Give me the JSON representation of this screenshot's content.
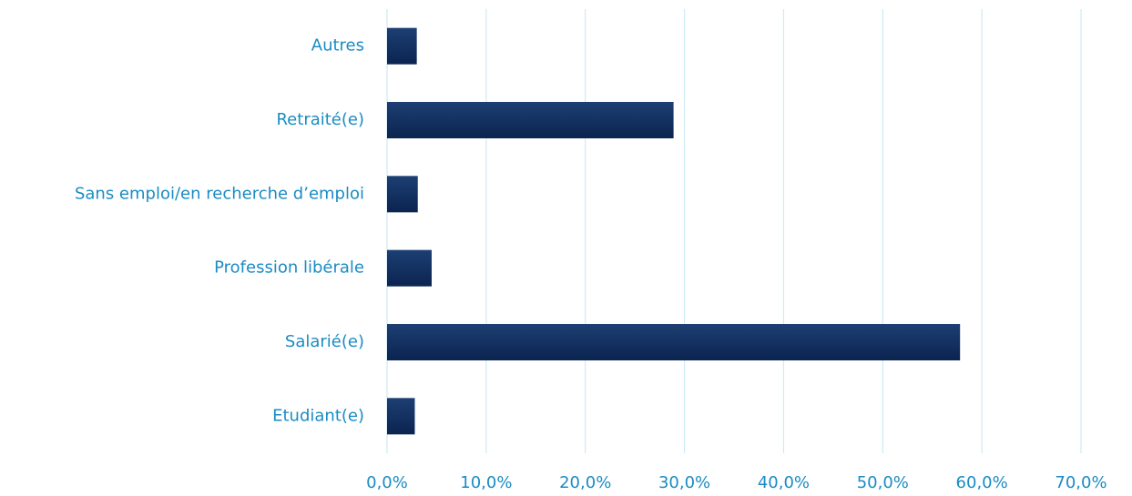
{
  "chart_data": {
    "type": "bar",
    "orientation": "horizontal",
    "categories": [
      "Etudiant(e)",
      "Salarié(e)",
      "Profession libérale",
      "Sans emploi/en recherche d’emploi",
      "Retraité(e)",
      "Autres"
    ],
    "values": [
      2.8,
      57.8,
      4.5,
      3.1,
      28.9,
      3.0
    ],
    "color": "#0f2d5c",
    "xlim": [
      0,
      70
    ],
    "xticks": [
      {
        "value": 0,
        "label": "0,0%"
      },
      {
        "value": 10,
        "label": "10,0%"
      },
      {
        "value": 20,
        "label": "20,0%"
      },
      {
        "value": 30,
        "label": "30,0%"
      },
      {
        "value": 40,
        "label": "40,0%"
      },
      {
        "value": 50,
        "label": "50,0%"
      },
      {
        "value": 60,
        "label": "60,0%"
      },
      {
        "value": 70,
        "label": "70,0%"
      }
    ],
    "grid": true
  }
}
